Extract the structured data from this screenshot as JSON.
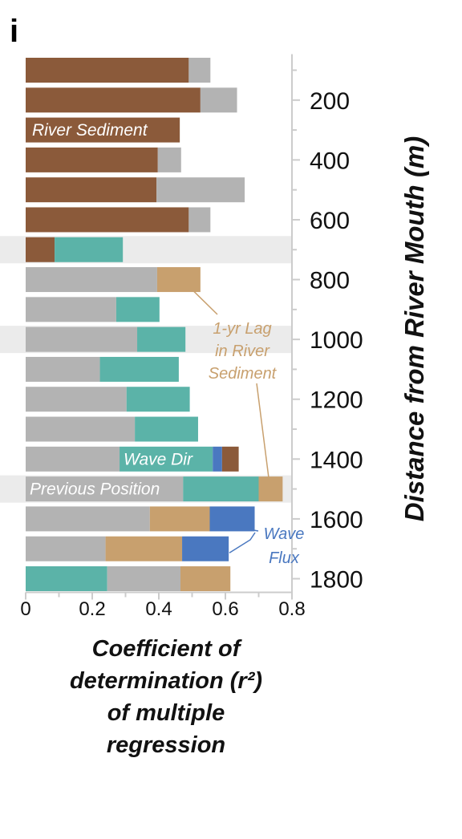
{
  "panel_label": "i",
  "colors": {
    "River Sediment": "#8b5a3a",
    "Previous Position": "#b3b3b3",
    "Wave Dir": "#5bb3a8",
    "1-yr Lag in River Sediment": "#c8a06e",
    "Wave Flux": "#4a78c0",
    "highlight": "#ebebeb",
    "axis": "#cccccc"
  },
  "chart_data": {
    "type": "bar",
    "orientation": "horizontal-stacked",
    "xlabel": [
      "Coefficient of",
      "determination (r²)",
      "of multiple",
      "regression"
    ],
    "ylabel": "Distance from River Mouth (m)",
    "xlim": [
      0,
      0.8
    ],
    "xticks": [
      "0",
      "0.2",
      "0.4",
      "0.6",
      "0.8"
    ],
    "ylim": [
      50,
      1850
    ],
    "yticks": [
      "200",
      "400",
      "600",
      "800",
      "1000",
      "1200",
      "1400",
      "1600",
      "1800"
    ],
    "highlighted_distances": [
      700,
      1000,
      1500
    ],
    "bars": [
      {
        "distance": 100,
        "segments": [
          {
            "predictor": "River Sediment",
            "value": 0.49
          },
          {
            "predictor": "Previous Position",
            "value": 0.065
          }
        ]
      },
      {
        "distance": 200,
        "segments": [
          {
            "predictor": "River Sediment",
            "value": 0.525
          },
          {
            "predictor": "Previous Position",
            "value": 0.11
          }
        ]
      },
      {
        "distance": 300,
        "segments": [
          {
            "predictor": "River Sediment",
            "value": 0.463
          }
        ]
      },
      {
        "distance": 400,
        "segments": [
          {
            "predictor": "River Sediment",
            "value": 0.397
          },
          {
            "predictor": "Previous Position",
            "value": 0.07
          }
        ]
      },
      {
        "distance": 500,
        "segments": [
          {
            "predictor": "River Sediment",
            "value": 0.393
          },
          {
            "predictor": "Previous Position",
            "value": 0.265
          }
        ]
      },
      {
        "distance": 600,
        "segments": [
          {
            "predictor": "River Sediment",
            "value": 0.49
          },
          {
            "predictor": "Previous Position",
            "value": 0.065
          }
        ]
      },
      {
        "distance": 700,
        "segments": [
          {
            "predictor": "River Sediment",
            "value": 0.087
          },
          {
            "predictor": "Wave Dir",
            "value": 0.205
          }
        ]
      },
      {
        "distance": 800,
        "segments": [
          {
            "predictor": "Previous Position",
            "value": 0.395
          },
          {
            "predictor": "1-yr Lag in River Sediment",
            "value": 0.13
          }
        ]
      },
      {
        "distance": 900,
        "segments": [
          {
            "predictor": "Previous Position",
            "value": 0.272
          },
          {
            "predictor": "Wave Dir",
            "value": 0.13
          }
        ]
      },
      {
        "distance": 1000,
        "segments": [
          {
            "predictor": "Previous Position",
            "value": 0.335
          },
          {
            "predictor": "Wave Dir",
            "value": 0.145
          }
        ]
      },
      {
        "distance": 1100,
        "segments": [
          {
            "predictor": "Previous Position",
            "value": 0.223
          },
          {
            "predictor": "Wave Dir",
            "value": 0.237
          }
        ]
      },
      {
        "distance": 1200,
        "segments": [
          {
            "predictor": "Previous Position",
            "value": 0.303
          },
          {
            "predictor": "Wave Dir",
            "value": 0.19
          }
        ]
      },
      {
        "distance": 1300,
        "segments": [
          {
            "predictor": "Previous Position",
            "value": 0.328
          },
          {
            "predictor": "Wave Dir",
            "value": 0.19
          }
        ]
      },
      {
        "distance": 1400,
        "segments": [
          {
            "predictor": "Previous Position",
            "value": 0.282
          },
          {
            "predictor": "Wave Dir",
            "value": 0.28
          },
          {
            "predictor": "Wave Flux",
            "value": 0.028
          },
          {
            "predictor": "River Sediment",
            "value": 0.05
          }
        ]
      },
      {
        "distance": 1500,
        "segments": [
          {
            "predictor": "Previous Position",
            "value": 0.473
          },
          {
            "predictor": "Wave Dir",
            "value": 0.227
          },
          {
            "predictor": "1-yr Lag in River Sediment",
            "value": 0.072
          }
        ]
      },
      {
        "distance": 1600,
        "segments": [
          {
            "predictor": "Previous Position",
            "value": 0.373
          },
          {
            "predictor": "1-yr Lag in River Sediment",
            "value": 0.18
          },
          {
            "predictor": "Wave Flux",
            "value": 0.135
          }
        ]
      },
      {
        "distance": 1700,
        "segments": [
          {
            "predictor": "Previous Position",
            "value": 0.24
          },
          {
            "predictor": "1-yr Lag in River Sediment",
            "value": 0.23
          },
          {
            "predictor": "Wave Flux",
            "value": 0.14
          }
        ]
      },
      {
        "distance": 1800,
        "segments": [
          {
            "predictor": "Wave Dir",
            "value": 0.245
          },
          {
            "predictor": "Previous Position",
            "value": 0.22
          },
          {
            "predictor": "1-yr Lag in River Sediment",
            "value": 0.15
          }
        ]
      }
    ],
    "annotations": [
      {
        "id": "river-sediment",
        "text": [
          "River Sediment"
        ],
        "near_distance": 300
      },
      {
        "id": "lag",
        "text": [
          "1-yr Lag",
          "in River",
          "Sediment"
        ],
        "near_distance": 1000
      },
      {
        "id": "wave-dir",
        "text": [
          "Wave Dir"
        ],
        "near_distance": 1400
      },
      {
        "id": "previous-position",
        "text": [
          "Previous Position"
        ],
        "near_distance": 1500
      },
      {
        "id": "wave-flux",
        "text": [
          "Wave",
          "Flux"
        ],
        "near_distance": 1700
      }
    ]
  }
}
